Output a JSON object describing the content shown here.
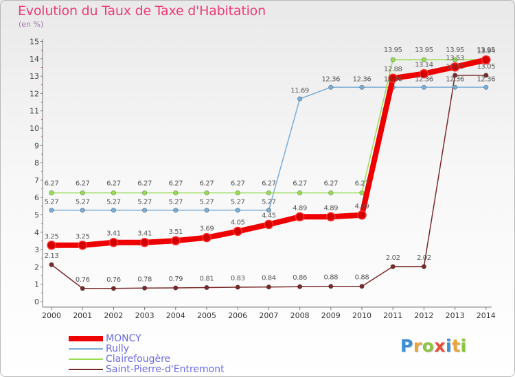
{
  "title": "Evolution du Taux de Taxe d'Habitation",
  "subtitle": "(en %)",
  "logo": {
    "text": "Proxiti",
    "letter_colors": [
      "#3a8fd8",
      "#e9a53c",
      "#8cc63f",
      "#e74c3c",
      "#3a8fd8",
      "#e9a53c",
      "#8cc63f"
    ]
  },
  "chart_data": {
    "type": "line",
    "x": [
      2000,
      2001,
      2002,
      2003,
      2004,
      2005,
      2006,
      2007,
      2008,
      2009,
      2010,
      2011,
      2012,
      2013,
      2014
    ],
    "ylim": [
      0,
      15
    ],
    "yticks": [
      0,
      1,
      2,
      3,
      4,
      5,
      6,
      7,
      8,
      9,
      10,
      11,
      12,
      13,
      14,
      15
    ],
    "grid": false,
    "legend_position": "bottom-left",
    "series": [
      {
        "name": "MONCY",
        "color": "#ee0000",
        "values": [
          3.25,
          3.25,
          3.41,
          3.41,
          3.51,
          3.69,
          4.05,
          4.45,
          4.89,
          4.89,
          4.99,
          12.88,
          13.14,
          13.53,
          13.94
        ],
        "labels": [
          "3.25",
          "3.25",
          "3.41",
          "3.41",
          "3.51",
          "3.69",
          "4.05",
          "4.45",
          "4.89",
          "4.89",
          "4.99",
          "12.88",
          "13.14",
          "13.53",
          "13.94"
        ]
      },
      {
        "name": "Rully",
        "color": "#7aaed8",
        "values": [
          5.27,
          5.27,
          5.27,
          5.27,
          5.27,
          5.27,
          5.27,
          5.27,
          11.69,
          12.36,
          12.36,
          12.36,
          12.36,
          12.36,
          12.36
        ],
        "labels": [
          "5.27",
          "5.27",
          "5.27",
          "5.27",
          "5.27",
          "5.27",
          "5.27",
          "5.27",
          "11.69",
          "12.36",
          "12.36",
          "12.36",
          "12.36",
          "12.36",
          "12.36"
        ]
      },
      {
        "name": "Clairefougère",
        "color": "#99dd55",
        "values": [
          6.27,
          6.27,
          6.27,
          6.27,
          6.27,
          6.27,
          6.27,
          6.27,
          6.27,
          6.27,
          6.27,
          13.95,
          13.95,
          13.95,
          13.95
        ],
        "labels": [
          "6.27",
          "6.27",
          "6.27",
          "6.27",
          "6.27",
          "6.27",
          "6.27",
          "6.27",
          "6.27",
          "6.27",
          "6.27",
          "13.95",
          "13.95",
          "13.95",
          "13.95"
        ]
      },
      {
        "name": "Saint-Pierre-d'Entremont",
        "color": "#7a2a2a",
        "values": [
          2.13,
          0.76,
          0.76,
          0.78,
          0.79,
          0.81,
          0.83,
          0.84,
          0.86,
          0.88,
          0.88,
          2.02,
          2.02,
          13.05,
          13.05
        ],
        "labels": [
          "2.13",
          "0.76",
          "0.76",
          "0.78",
          "0.79",
          "0.81",
          "0.83",
          "0.84",
          "0.86",
          "0.88",
          "0.88",
          "2.02",
          "2.02",
          "13.05",
          "13.05"
        ]
      }
    ]
  }
}
